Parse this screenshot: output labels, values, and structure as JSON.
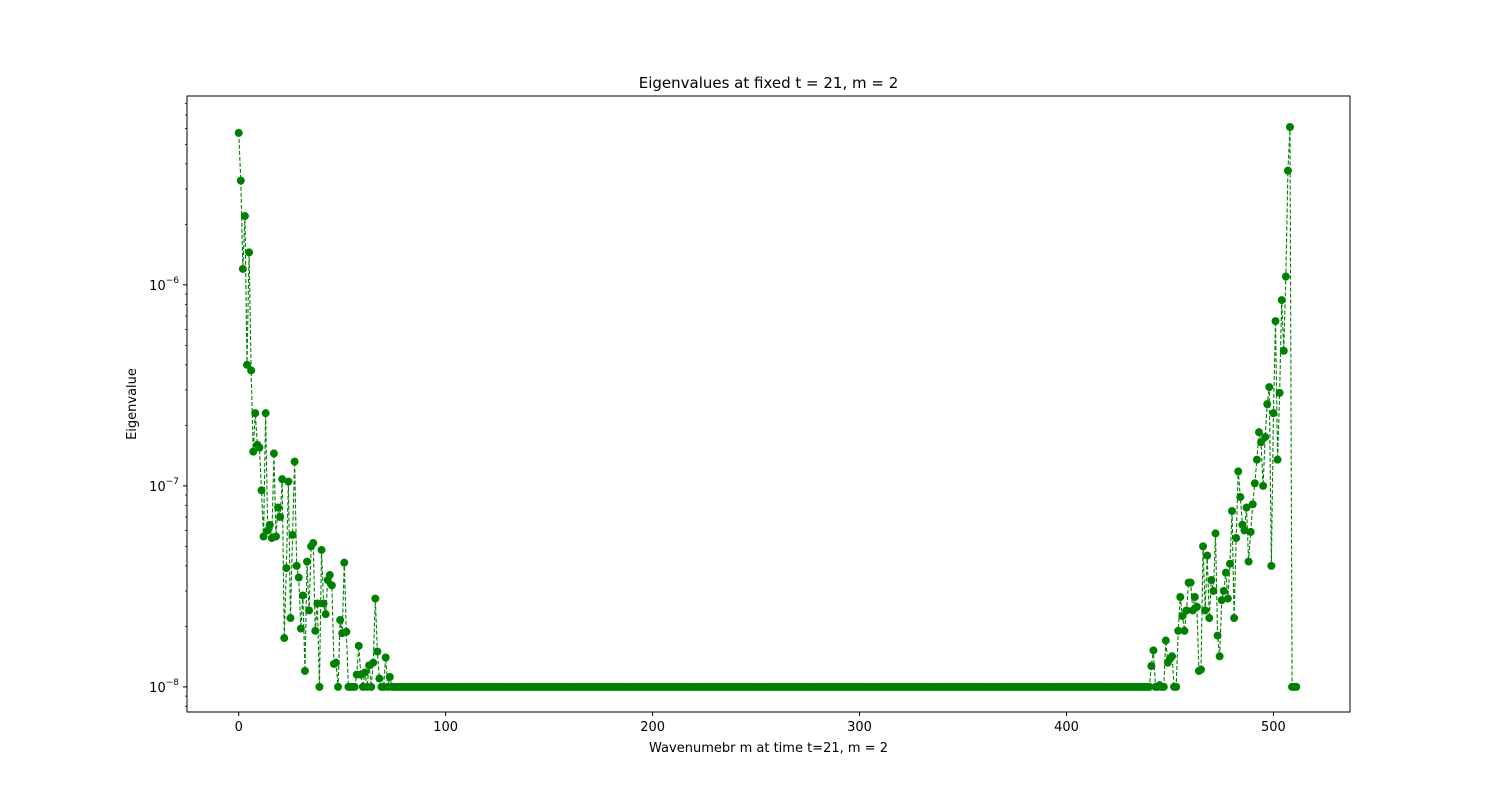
{
  "chart_data": {
    "type": "line",
    "title": "Eigenvalues at fixed t = 21, m = 2",
    "xlabel": "Wavenumebr m at time t=21, m = 2",
    "ylabel": "Eigenvalue",
    "yscale": "log",
    "xlim": [
      -25,
      537
    ],
    "ylim": [
      7.5e-09,
      8.7e-06
    ],
    "xticks": [
      0,
      100,
      200,
      300,
      400,
      500
    ],
    "xtick_labels": [
      "0",
      "100",
      "200",
      "300",
      "400",
      "500"
    ],
    "yticks": [
      1e-08,
      1e-07,
      1e-06
    ],
    "ytick_labels": [
      {
        "base": "10",
        "exp": "−8"
      },
      {
        "base": "10",
        "exp": "−7"
      },
      {
        "base": "10",
        "exp": "−6"
      }
    ],
    "grid": false,
    "series": [
      {
        "name": "eigenvalues",
        "color": "#008000",
        "linestyle": "dashed",
        "marker": "circle",
        "floor_value": 1e-08,
        "n_points": 512,
        "x_start": 0,
        "points": [
          [
            0,
            5.7e-06
          ],
          [
            1,
            3.3e-06
          ],
          [
            2,
            1.2e-06
          ],
          [
            3,
            2.2e-06
          ],
          [
            4,
            4e-07
          ],
          [
            5,
            1.45e-06
          ],
          [
            6,
            3.75e-07
          ],
          [
            7,
            1.48e-07
          ],
          [
            8,
            2.3e-07
          ],
          [
            9,
            1.6e-07
          ],
          [
            10,
            1.55e-07
          ],
          [
            11,
            9.5e-08
          ],
          [
            12,
            5.6e-08
          ],
          [
            13,
            2.3e-07
          ],
          [
            14,
            6e-08
          ],
          [
            15,
            6.4e-08
          ],
          [
            16,
            5.5e-08
          ],
          [
            17,
            1.45e-07
          ],
          [
            18,
            5.6e-08
          ],
          [
            19,
            7.8e-08
          ],
          [
            20,
            7e-08
          ],
          [
            21,
            1.08e-07
          ],
          [
            22,
            1.75e-08
          ],
          [
            23,
            3.9e-08
          ],
          [
            24,
            1.05e-07
          ],
          [
            25,
            2.2e-08
          ],
          [
            26,
            5.7e-08
          ],
          [
            27,
            1.32e-07
          ],
          [
            28,
            4e-08
          ],
          [
            29,
            3.5e-08
          ],
          [
            30,
            1.95e-08
          ],
          [
            31,
            2.85e-08
          ],
          [
            32,
            1.2e-08
          ],
          [
            33,
            4.2e-08
          ],
          [
            34,
            2.4e-08
          ],
          [
            35,
            5e-08
          ],
          [
            36,
            5.2e-08
          ],
          [
            37,
            1.9e-08
          ],
          [
            38,
            2.6e-08
          ],
          [
            39,
            1e-08
          ],
          [
            40,
            4.8e-08
          ],
          [
            41,
            2.6e-08
          ],
          [
            42,
            2.3e-08
          ],
          [
            43,
            3.4e-08
          ],
          [
            44,
            3.6e-08
          ],
          [
            45,
            3.2e-08
          ],
          [
            46,
            1.3e-08
          ],
          [
            47,
            1.32e-08
          ],
          [
            48,
            1e-08
          ],
          [
            49,
            2.15e-08
          ],
          [
            50,
            1.85e-08
          ],
          [
            51,
            4.15e-08
          ],
          [
            52,
            1.88e-08
          ],
          [
            53,
            1e-08
          ],
          [
            54,
            1e-08
          ],
          [
            55,
            1e-08
          ],
          [
            56,
            1e-08
          ],
          [
            57,
            1.15e-08
          ],
          [
            58,
            1.6e-08
          ],
          [
            59,
            1.15e-08
          ],
          [
            60,
            1e-08
          ],
          [
            61,
            1.18e-08
          ],
          [
            62,
            1e-08
          ],
          [
            63,
            1.28e-08
          ],
          [
            64,
            1e-08
          ],
          [
            65,
            1.32e-08
          ],
          [
            66,
            2.75e-08
          ],
          [
            67,
            1.5e-08
          ],
          [
            68,
            1.1e-08
          ],
          [
            69,
            1e-08
          ],
          [
            70,
            1e-08
          ],
          [
            71,
            1.4e-08
          ],
          [
            72,
            1e-08
          ],
          [
            73,
            1.12e-08
          ],
          [
            440,
            1e-08
          ],
          [
            441,
            1.27e-08
          ],
          [
            442,
            1.52e-08
          ],
          [
            443,
            1e-08
          ],
          [
            444,
            1e-08
          ],
          [
            445,
            1.02e-08
          ],
          [
            446,
            1e-08
          ],
          [
            447,
            1e-08
          ],
          [
            448,
            1.7e-08
          ],
          [
            449,
            1.32e-08
          ],
          [
            450,
            1.38e-08
          ],
          [
            451,
            1.42e-08
          ],
          [
            452,
            1e-08
          ],
          [
            453,
            1e-08
          ],
          [
            454,
            1.9e-08
          ],
          [
            455,
            2.8e-08
          ],
          [
            456,
            2.25e-08
          ],
          [
            457,
            1.9e-08
          ],
          [
            458,
            2.4e-08
          ],
          [
            459,
            3.3e-08
          ],
          [
            460,
            3.3e-08
          ],
          [
            461,
            2.4e-08
          ],
          [
            462,
            2.8e-08
          ],
          [
            463,
            2.5e-08
          ],
          [
            464,
            1.2e-08
          ],
          [
            465,
            1.22e-08
          ],
          [
            466,
            5e-08
          ],
          [
            467,
            2.4e-08
          ],
          [
            468,
            4.5e-08
          ],
          [
            469,
            2.2e-08
          ],
          [
            470,
            3.4e-08
          ],
          [
            471,
            3e-08
          ],
          [
            472,
            5.8e-08
          ],
          [
            473,
            1.8e-08
          ],
          [
            474,
            1.42e-08
          ],
          [
            475,
            2.7e-08
          ],
          [
            476,
            3e-08
          ],
          [
            477,
            3.7e-08
          ],
          [
            478,
            2.75e-08
          ],
          [
            479,
            4.1e-08
          ],
          [
            480,
            7.5e-08
          ],
          [
            481,
            2.2e-08
          ],
          [
            482,
            5.5e-08
          ],
          [
            483,
            1.18e-07
          ],
          [
            484,
            8.8e-08
          ],
          [
            485,
            6.4e-08
          ],
          [
            486,
            6e-08
          ],
          [
            487,
            7.8e-08
          ],
          [
            488,
            4.2e-08
          ],
          [
            489,
            5.9e-08
          ],
          [
            490,
            8.1e-08
          ],
          [
            491,
            1.03e-07
          ],
          [
            492,
            1.35e-07
          ],
          [
            493,
            1.85e-07
          ],
          [
            494,
            1.65e-07
          ],
          [
            495,
            1e-07
          ],
          [
            496,
            1.75e-07
          ],
          [
            497,
            2.55e-07
          ],
          [
            498,
            3.1e-07
          ],
          [
            499,
            4e-08
          ],
          [
            500,
            2.3e-07
          ],
          [
            501,
            6.6e-07
          ],
          [
            502,
            1.35e-07
          ],
          [
            503,
            2.9e-07
          ],
          [
            504,
            8.4e-07
          ],
          [
            505,
            4.7e-07
          ],
          [
            506,
            1.1e-06
          ],
          [
            507,
            3.7e-06
          ],
          [
            508,
            6.1e-06
          ]
        ]
      }
    ]
  }
}
